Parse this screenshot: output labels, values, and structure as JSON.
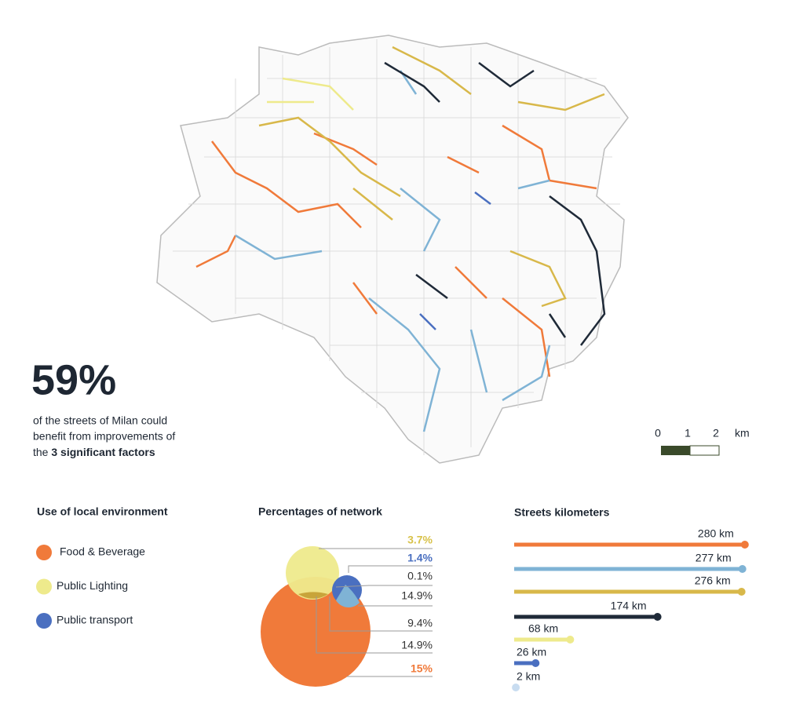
{
  "headline": {
    "figure": "59%",
    "lines": [
      "of the streets of Milan could",
      "benefit from improvements of",
      "the "
    ],
    "emphasis": "3 significant factors"
  },
  "scale_bar": {
    "labels": [
      "0",
      "1",
      "2",
      "km"
    ]
  },
  "legend": {
    "title": "Use of local environment",
    "items": [
      {
        "label": "Food & Beverage",
        "color": "#f07a3a"
      },
      {
        "label": "Public Lighting",
        "color": "#eeea8c"
      },
      {
        "label": "Public transport",
        "color": "#4a6fc0"
      }
    ]
  },
  "venn": {
    "title": "Percentages of network",
    "labels": [
      {
        "text": "3.7%",
        "color": "#d8c24a",
        "bold": true
      },
      {
        "text": "1.4%",
        "color": "#4a6fc0",
        "bold": true
      },
      {
        "text": "0.1%",
        "color": "#333",
        "bold": false
      },
      {
        "text": "14.9%",
        "color": "#333",
        "bold": false
      },
      {
        "text": "9.4%",
        "color": "#333",
        "bold": false
      },
      {
        "text": "14.9%",
        "color": "#333",
        "bold": false
      },
      {
        "text": "15%",
        "color": "#f07a3a",
        "bold": true
      }
    ]
  },
  "chart_data": {
    "type": "lollipop",
    "title": "Streets kilometers",
    "values": [
      280,
      277,
      276,
      174,
      68,
      26,
      2
    ],
    "value_labels": [
      "280 km",
      "277 km",
      "276 km",
      "174 km",
      "68 km",
      "26 km",
      "2 km"
    ],
    "colors": [
      "#f07a3a",
      "#7fb3d5",
      "#d8b84a",
      "#1f2a38",
      "#eeea8c",
      "#4a6fc0",
      "#c8dcf0"
    ],
    "xlim": [
      0,
      283
    ]
  }
}
